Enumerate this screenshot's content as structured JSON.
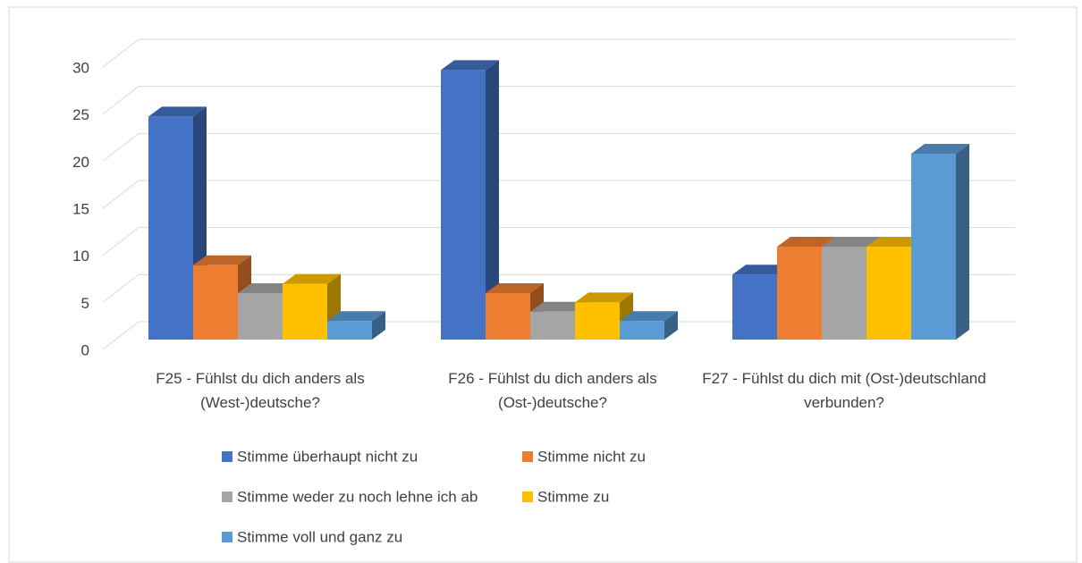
{
  "chart_data": {
    "type": "bar3d",
    "categories": [
      "F25 - Fühlst du dich anders als (West-)deutsche?",
      "F26 - Fühlst du dich anders als (Ost-)deutsche?",
      "F27 - Fühlst du dich mit (Ost-)deutschland verbunden?"
    ],
    "series": [
      {
        "name": "Stimme überhaupt nicht zu",
        "color": "#4472c4",
        "values": [
          24,
          29,
          7
        ]
      },
      {
        "name": "Stimme nicht zu",
        "color": "#ed7d31",
        "values": [
          8,
          5,
          10
        ]
      },
      {
        "name": "Stimme weder zu noch lehne ich ab",
        "color": "#a5a5a5",
        "values": [
          5,
          3,
          10
        ]
      },
      {
        "name": "Stimme zu",
        "color": "#ffc000",
        "values": [
          6,
          4,
          10
        ]
      },
      {
        "name": "Stimme voll und ganz zu",
        "color": "#5b9bd5",
        "values": [
          2,
          2,
          20
        ]
      }
    ],
    "ylim": [
      0,
      30
    ],
    "yticks": [
      0,
      5,
      10,
      15,
      20,
      25,
      30
    ],
    "grid": true,
    "legend": "bottom"
  }
}
